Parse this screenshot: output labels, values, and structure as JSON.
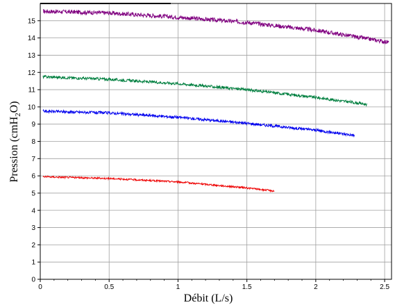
{
  "chart_data": {
    "type": "line",
    "xlabel": "Débit (L/s)",
    "ylabel_parts": {
      "pre": "Pression (c",
      "main": "mH",
      "sub": "2",
      "post": "O)"
    },
    "xlim": [
      0,
      2.55
    ],
    "ylim": [
      0,
      16
    ],
    "x_ticks": [
      0,
      0.5,
      1,
      1.5,
      2,
      2.5
    ],
    "x_tick_labels": [
      "0",
      "0.5",
      "1",
      "1.5",
      "2",
      "2.5"
    ],
    "y_ticks": [
      0,
      1,
      2,
      3,
      4,
      5,
      6,
      7,
      8,
      9,
      10,
      11,
      12,
      13,
      14,
      15
    ],
    "y_tick_labels": [
      "0",
      "1",
      "2",
      "3",
      "4",
      "5",
      "6",
      "7",
      "8",
      "9",
      "10",
      "11",
      "12",
      "13",
      "14",
      "15"
    ],
    "grid": true,
    "colors": {
      "purple": "#800080",
      "green": "#007f3f",
      "blue": "#0000ee",
      "red": "#ee0000",
      "grid": "#a0a0a0"
    },
    "series": [
      {
        "color": "purple",
        "noise": 0.12,
        "x": [
          0.02,
          0.5,
          1.0,
          1.5,
          2.0,
          2.3,
          2.53
        ],
        "y": [
          15.55,
          15.45,
          15.2,
          14.9,
          14.45,
          14.05,
          13.75
        ]
      },
      {
        "color": "green",
        "noise": 0.08,
        "x": [
          0.02,
          0.5,
          1.0,
          1.5,
          2.0,
          2.37
        ],
        "y": [
          11.75,
          11.6,
          11.35,
          11.0,
          10.55,
          10.15
        ]
      },
      {
        "color": "blue",
        "noise": 0.08,
        "x": [
          0.02,
          0.5,
          1.0,
          1.5,
          2.0,
          2.28
        ],
        "y": [
          9.75,
          9.65,
          9.4,
          9.05,
          8.65,
          8.35
        ]
      },
      {
        "color": "red",
        "noise": 0.05,
        "x": [
          0.02,
          0.5,
          1.0,
          1.5,
          1.7
        ],
        "y": [
          5.95,
          5.85,
          5.65,
          5.3,
          5.12
        ]
      }
    ]
  }
}
